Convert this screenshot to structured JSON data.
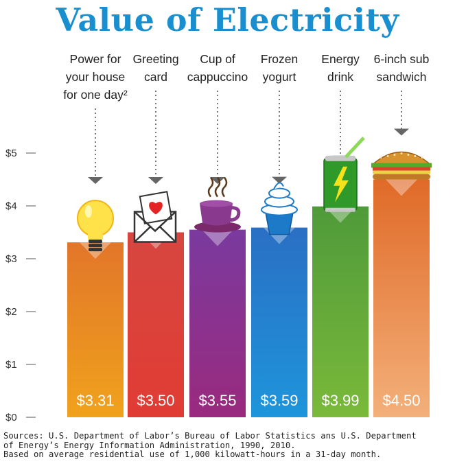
{
  "title": "Value of Electricity",
  "chart_data": {
    "type": "bar",
    "title": "Value of Electricity",
    "categories": [
      [
        "Power for",
        "your house",
        "for one day²"
      ],
      [
        "Greeting",
        "card"
      ],
      [
        "Cup of",
        "cappuccino"
      ],
      [
        "Frozen",
        "yogurt"
      ],
      [
        "Energy",
        "drink"
      ],
      [
        "6-inch sub",
        "sandwich"
      ]
    ],
    "values": [
      3.31,
      3.5,
      3.55,
      3.59,
      3.99,
      4.5
    ],
    "value_labels": [
      "$3.31",
      "$3.50",
      "$3.55",
      "$3.59",
      "$3.99",
      "$4.50"
    ],
    "yticks": [
      "$0",
      "$1",
      "$2",
      "$3",
      "$4",
      "$5"
    ],
    "ylim": [
      0,
      5
    ],
    "icons": [
      "light-bulb-icon",
      "greeting-card-icon",
      "coffee-cup-icon",
      "frozen-yogurt-icon",
      "energy-drink-icon",
      "sandwich-icon"
    ],
    "colors": [
      [
        "#f0a21c",
        "#e2762a"
      ],
      [
        "#e03c34",
        "#d74640"
      ],
      [
        "#9a2a7e",
        "#7a3a9e"
      ],
      [
        "#1e95dc",
        "#2a6fc4"
      ],
      [
        "#7ab93a",
        "#4f9a3a"
      ],
      [
        "#f3b07a",
        "#e06a28"
      ]
    ],
    "legend": "none",
    "grid": false
  },
  "footer": {
    "line1": "Sources: U.S. Department of Labor’s Bureau of Labor Statistics ans U.S. Department",
    "line2": "of Energy’s Energy Information Administration, 1990, 2010.",
    "line3": "Based on average residential use of 1,000 kilowatt-hours in a 31-day month."
  }
}
